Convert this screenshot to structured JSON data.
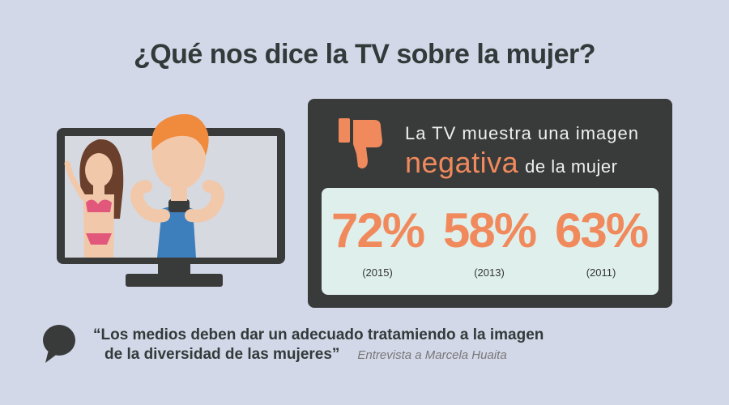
{
  "title": "¿Qué nos dice la TV sobre la mujer?",
  "headline": {
    "line1": "La TV muestra una imagen",
    "emphasis": "negativa",
    "line2_rest": "de la mujer"
  },
  "stats": [
    {
      "value": "72%",
      "year": "(2015)"
    },
    {
      "value": "58%",
      "year": "(2013)"
    },
    {
      "value": "63%",
      "year": "(2011)"
    }
  ],
  "quote": {
    "line1": "“Los medios deben dar un adecuado tratamiendo a la imagen",
    "line2": "de la diversidad de las mujeres”",
    "attribution": "Entrevista a Marcela Huaita"
  },
  "icons": {
    "thumb": "thumbs-down-icon",
    "bubble": "speech-bubble-icon",
    "tv": "tv-icon"
  },
  "colors": {
    "background": "#d3d8e8",
    "panel": "#393a3a",
    "accent": "#f08a5d",
    "stats_box": "#dff0ec"
  }
}
